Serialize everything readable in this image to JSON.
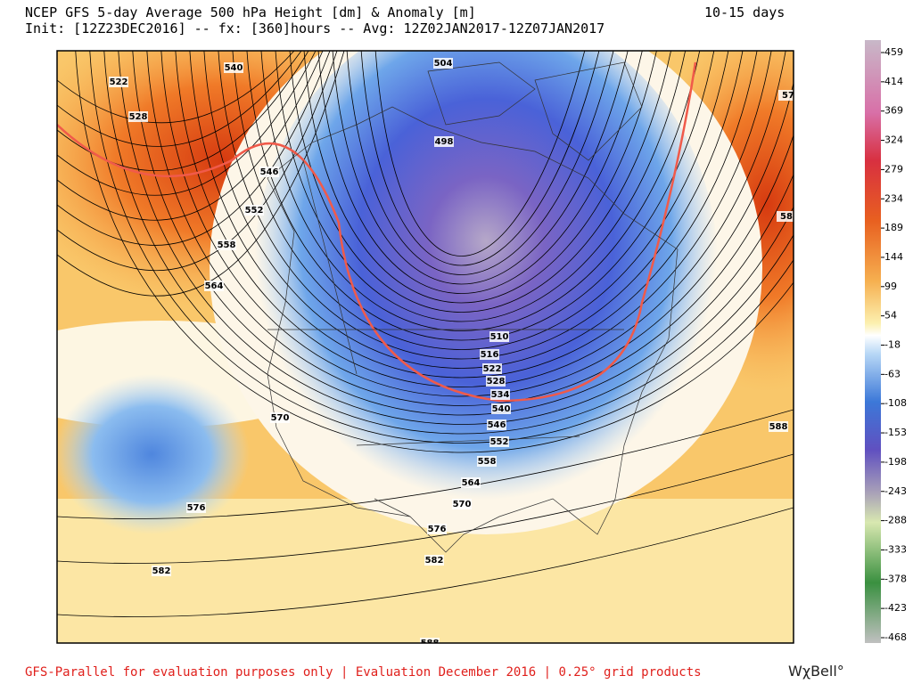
{
  "header": {
    "title": "NCEP GFS 5-day Average 500 hPa Height [dm] & Anomaly [m]",
    "subtitle": "Init: [12Z23DEC2016] -- fx: [360]hours -- Avg: 12Z02JAN2017-12Z07JAN2017",
    "period": "10-15 days"
  },
  "colorbar": {
    "ticks": [
      459,
      414,
      369,
      324,
      279,
      234,
      189,
      144,
      99,
      54,
      -18,
      -63,
      -108,
      -153,
      -198,
      -243,
      -288,
      -333,
      -378,
      -423,
      -468
    ]
  },
  "contour_labels": [
    "522",
    "528",
    "540",
    "546",
    "552",
    "558",
    "564",
    "570",
    "576",
    "582",
    "504",
    "498",
    "510",
    "516",
    "522",
    "528",
    "534",
    "540",
    "546",
    "552",
    "558",
    "564",
    "570",
    "576",
    "582",
    "588",
    "588",
    "57",
    "58"
  ],
  "footer": {
    "text": "GFS-Parallel for evaluation purposes only | Evaluation December 2016 | 0.25° grid products",
    "logo": "WχBell°"
  }
}
